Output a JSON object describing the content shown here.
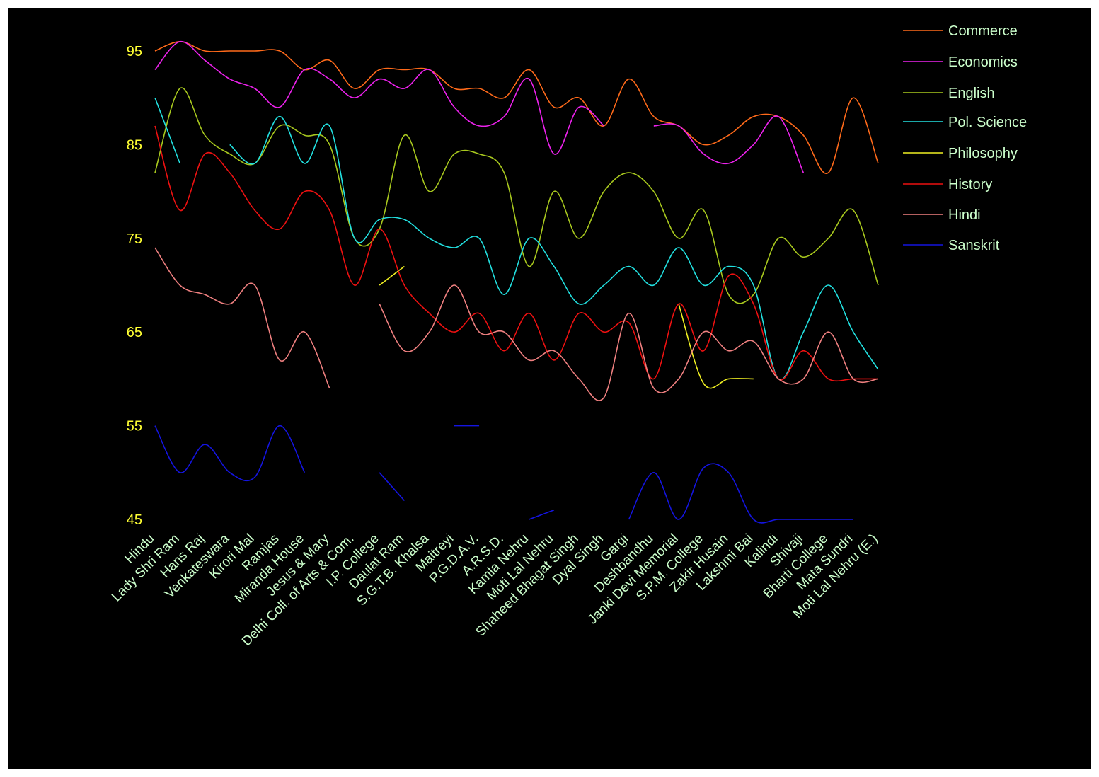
{
  "chart_data": {
    "type": "line",
    "title": "",
    "xlabel": "",
    "ylabel": "",
    "ylim": [
      45,
      95
    ],
    "yticks": [
      "95",
      "85",
      "75",
      "65",
      "55",
      "45"
    ],
    "grid": false,
    "legend_position": "top-right",
    "categories": [
      "Hindu",
      "Lady Shri Ram",
      "Hans Raj",
      "Venkateswara",
      "Kirori Mal",
      "Ramjas",
      "Miranda House",
      "Jesus & Mary",
      "Delhi Coll. of Arts & Com.",
      "I.P. College",
      "Daulat Ram",
      "S.G.T.B. Khalsa",
      "Maitreyi",
      "P.G.D.A.V.",
      "A.R.S.D.",
      "Kamla Nehru",
      "Moti Lal Nehru",
      "Shaheed Bhagat Singh",
      "Dyal Singh",
      "Gargi",
      "Deshbandhu",
      "Janki Devi Memorial",
      "S.P.M. College",
      "Zakir Husain",
      "Lakshmi Bai",
      "Kalindi",
      "Shivaji",
      "Bharti College",
      "Mata Sundri",
      "Moti Lal Nehru (E.)"
    ],
    "series": [
      {
        "name": "Commerce",
        "color": "#ff6a1a",
        "values": [
          95,
          96,
          95,
          95,
          95,
          95,
          93,
          94,
          91,
          93,
          93,
          93,
          91,
          91,
          90,
          93,
          89,
          90,
          87,
          92,
          88,
          87,
          85,
          86,
          88,
          88,
          86,
          82,
          90,
          83
        ]
      },
      {
        "name": "Economics",
        "color": "#ee22ee",
        "values": [
          93,
          96,
          94,
          92,
          91,
          89,
          93,
          92,
          90,
          92,
          91,
          93,
          89,
          87,
          88,
          92,
          84,
          89,
          87,
          null,
          87,
          87,
          84,
          83,
          85,
          88,
          82,
          null,
          null,
          null
        ]
      },
      {
        "name": "English",
        "color": "#a8c81e",
        "values": [
          82,
          91,
          86,
          84,
          83,
          87,
          86,
          85,
          75,
          76,
          86,
          80,
          84,
          84,
          82,
          72,
          80,
          75,
          80,
          82,
          80,
          75,
          78,
          69,
          69,
          75,
          73,
          75,
          78,
          70
        ]
      },
      {
        "name": "Pol. Science",
        "color": "#22e0e0",
        "values": [
          90,
          83,
          null,
          85,
          83,
          88,
          83,
          87,
          75,
          77,
          77,
          75,
          74,
          75,
          69,
          75,
          72,
          68,
          70,
          72,
          70,
          74,
          70,
          72,
          70,
          60,
          65,
          70,
          65,
          61
        ]
      },
      {
        "name": "Philosophy",
        "color": "#f0f022",
        "values": [
          null,
          null,
          null,
          null,
          null,
          null,
          null,
          null,
          null,
          70,
          72,
          null,
          null,
          null,
          null,
          null,
          null,
          null,
          null,
          null,
          null,
          68,
          59.5,
          60,
          60,
          null,
          null,
          null,
          null,
          null
        ]
      },
      {
        "name": "History",
        "color": "#ee1111",
        "values": [
          87,
          78,
          84,
          82,
          78,
          76,
          80,
          78,
          70,
          76,
          70,
          67,
          65,
          67,
          63,
          67,
          62,
          67,
          65,
          66,
          60,
          68,
          63,
          71,
          68,
          60,
          63,
          60,
          60,
          60
        ]
      },
      {
        "name": "Hindi",
        "color": "#f08080",
        "values": [
          74,
          70,
          69,
          68,
          70,
          62,
          65,
          59,
          null,
          68,
          63,
          65,
          70,
          65,
          65,
          62,
          63,
          60,
          58,
          67,
          59,
          60,
          65,
          63,
          64,
          60,
          60,
          65,
          60,
          60
        ]
      },
      {
        "name": "Sanskrit",
        "color": "#1414e0",
        "values": [
          55,
          50,
          53,
          50,
          49.5,
          55,
          50,
          null,
          null,
          50,
          47,
          null,
          55,
          55,
          null,
          45,
          46,
          null,
          null,
          45,
          50,
          45,
          50.5,
          50,
          45,
          45,
          45,
          45,
          45,
          null
        ]
      }
    ]
  }
}
